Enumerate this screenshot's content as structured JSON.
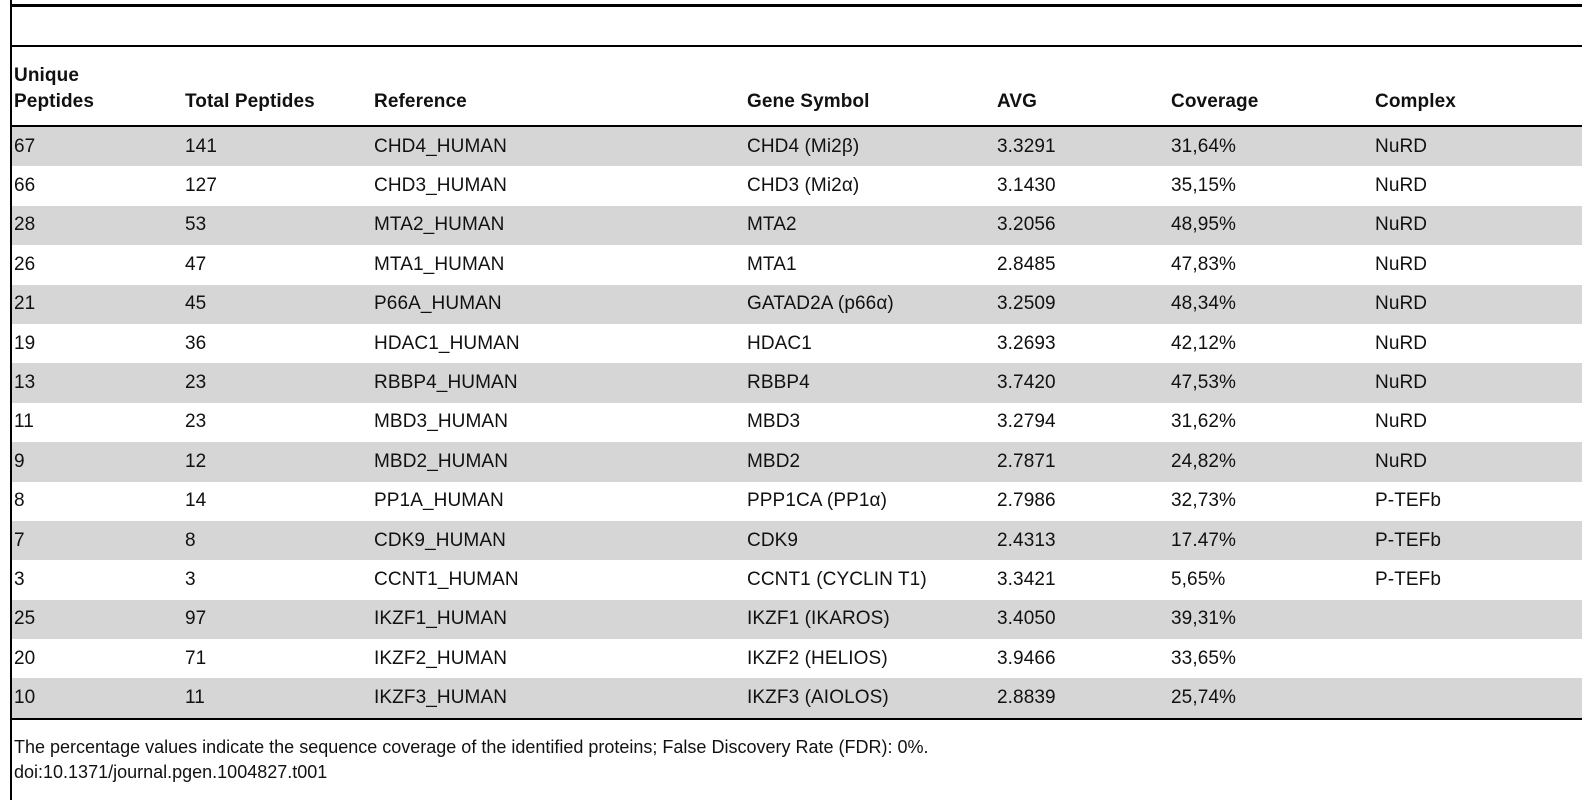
{
  "table": {
    "headers": {
      "unique_peptides_line1": "Unique",
      "unique_peptides_line2": "Peptides",
      "total_peptides": "Total Peptides",
      "reference": "Reference",
      "gene_symbol": "Gene Symbol",
      "avg": "AVG",
      "coverage": "Coverage",
      "complex": "Complex"
    },
    "rows": [
      {
        "unique": "67",
        "total": "141",
        "reference": "CHD4_HUMAN",
        "gene": "CHD4 (Mi2β)",
        "avg": "3.3291",
        "coverage": "31,64%",
        "complex": "NuRD"
      },
      {
        "unique": "66",
        "total": "127",
        "reference": "CHD3_HUMAN",
        "gene": "CHD3 (Mi2α)",
        "avg": "3.1430",
        "coverage": "35,15%",
        "complex": "NuRD"
      },
      {
        "unique": "28",
        "total": "53",
        "reference": "MTA2_HUMAN",
        "gene": "MTA2",
        "avg": "3.2056",
        "coverage": "48,95%",
        "complex": "NuRD"
      },
      {
        "unique": "26",
        "total": "47",
        "reference": "MTA1_HUMAN",
        "gene": "MTA1",
        "avg": "2.8485",
        "coverage": "47,83%",
        "complex": "NuRD"
      },
      {
        "unique": "21",
        "total": "45",
        "reference": "P66A_HUMAN",
        "gene": "GATAD2A (p66α)",
        "avg": "3.2509",
        "coverage": "48,34%",
        "complex": "NuRD"
      },
      {
        "unique": "19",
        "total": "36",
        "reference": "HDAC1_HUMAN",
        "gene": "HDAC1",
        "avg": "3.2693",
        "coverage": "42,12%",
        "complex": "NuRD"
      },
      {
        "unique": "13",
        "total": "23",
        "reference": "RBBP4_HUMAN",
        "gene": "RBBP4",
        "avg": "3.7420",
        "coverage": "47,53%",
        "complex": "NuRD"
      },
      {
        "unique": "11",
        "total": "23",
        "reference": "MBD3_HUMAN",
        "gene": "MBD3",
        "avg": "3.2794",
        "coverage": "31,62%",
        "complex": "NuRD"
      },
      {
        "unique": "9",
        "total": "12",
        "reference": "MBD2_HUMAN",
        "gene": "MBD2",
        "avg": "2.7871",
        "coverage": "24,82%",
        "complex": "NuRD"
      },
      {
        "unique": "8",
        "total": "14",
        "reference": "PP1A_HUMAN",
        "gene": "PPP1CA (PP1α)",
        "avg": "2.7986",
        "coverage": "32,73%",
        "complex": "P-TEFb"
      },
      {
        "unique": "7",
        "total": "8",
        "reference": "CDK9_HUMAN",
        "gene": "CDK9",
        "avg": "2.4313",
        "coverage": "17.47%",
        "complex": "P-TEFb"
      },
      {
        "unique": "3",
        "total": "3",
        "reference": "CCNT1_HUMAN",
        "gene": "CCNT1 (CYCLIN T1)",
        "avg": "3.3421",
        "coverage": "5,65%",
        "complex": "P-TEFb"
      },
      {
        "unique": "25",
        "total": "97",
        "reference": "IKZF1_HUMAN",
        "gene": "IKZF1 (IKAROS)",
        "avg": "3.4050",
        "coverage": "39,31%",
        "complex": ""
      },
      {
        "unique": "20",
        "total": "71",
        "reference": "IKZF2_HUMAN",
        "gene": "IKZF2 (HELIOS)",
        "avg": "3.9466",
        "coverage": "33,65%",
        "complex": ""
      },
      {
        "unique": "10",
        "total": "11",
        "reference": "IKZF3_HUMAN",
        "gene": "IKZF3 (AIOLOS)",
        "avg": "2.8839",
        "coverage": "25,74%",
        "complex": ""
      }
    ]
  },
  "footnote": "The percentage values indicate the sequence coverage of the identified proteins; False Discovery Rate (FDR): 0%.",
  "doi": "doi:10.1371/journal.pgen.1004827.t001"
}
